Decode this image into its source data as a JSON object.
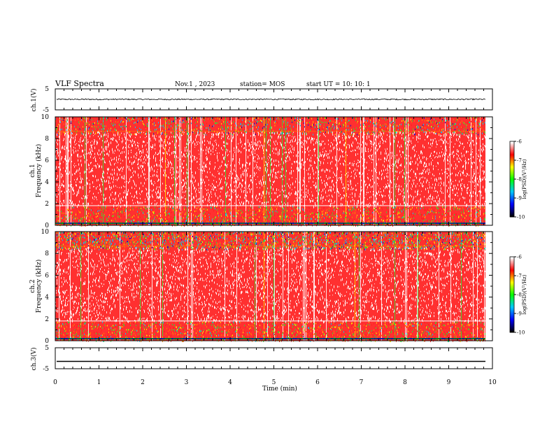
{
  "header": {
    "title": "VLF Spectra",
    "date": "Nov.1 , 2023",
    "station": "station= MOS",
    "start": "start UT = 10: 10: 1"
  },
  "colors": {
    "axis": "#000000",
    "background": "#ffffff",
    "colormap": [
      "#000000",
      "#0000ff",
      "#00c8ff",
      "#00ff00",
      "#ffff00",
      "#ff0000",
      "#ffffff"
    ]
  },
  "chart_data": [
    {
      "type": "line",
      "name": "ch1",
      "ylabel": "ch.1(V)",
      "ylim": [
        -5,
        5
      ],
      "yticks": [
        "5",
        "-5"
      ],
      "xlim": [
        0,
        10
      ],
      "series": [
        {
          "values_mean": 0.0,
          "noise_amplitude": 0.3
        }
      ]
    },
    {
      "type": "heatmap",
      "name": "ch1-spectrogram",
      "ylabel": "ch.1 Frequency (kHz)",
      "ylim": [
        0,
        10
      ],
      "yticks": [
        "0",
        "2",
        "4",
        "6",
        "8",
        "10"
      ],
      "xlim": [
        0,
        10
      ],
      "colorbar": {
        "label": "log(PSD)(V²/Hz)",
        "range": [
          -10,
          -6
        ],
        "ticks": [
          "-6",
          "-7",
          "-8",
          "-9",
          "-10"
        ]
      }
    },
    {
      "type": "heatmap",
      "name": "ch2-spectrogram",
      "ylabel": "ch.2 Frequency (kHz)",
      "ylim": [
        0,
        10
      ],
      "yticks": [
        "0",
        "2",
        "4",
        "6",
        "8",
        "10"
      ],
      "xlim": [
        0,
        10
      ],
      "colorbar": {
        "label": "log(PSD)(V²/Hz)",
        "range": [
          -10,
          -6
        ],
        "ticks": [
          "-6",
          "-7",
          "-8",
          "-9",
          "-10"
        ]
      }
    },
    {
      "type": "line",
      "name": "ch3",
      "ylabel": "ch.3(V)",
      "ylim": [
        -5,
        5
      ],
      "yticks": [
        "5",
        "-5"
      ],
      "xlim": [
        0,
        10
      ],
      "series": [
        {
          "values_mean": -1.5,
          "noise_amplitude": 0.0
        }
      ]
    }
  ],
  "xaxis": {
    "label": "Time (min)",
    "ticks": [
      "0",
      "1",
      "2",
      "3",
      "4",
      "5",
      "6",
      "7",
      "8",
      "9",
      "10"
    ],
    "data_end": 9.84
  }
}
